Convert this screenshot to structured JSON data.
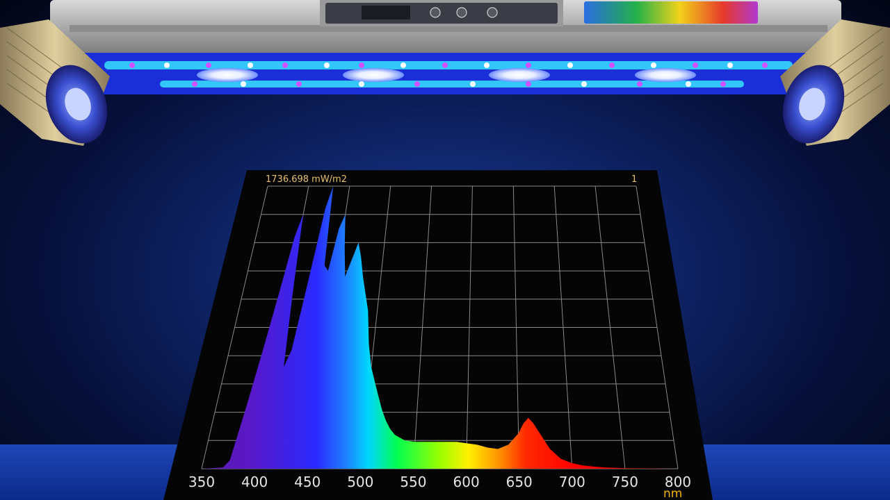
{
  "colors": {
    "panel_bg": "#050505",
    "grid": "#8a8a8a",
    "accent": "#f0b400",
    "readout": "#e8c070",
    "tick_text": "#e6e6e6",
    "led_blue": "#3a7bff",
    "led_violet": "#c040ff",
    "led_white": "#f4f8ff"
  },
  "lamp": {
    "icon": "led-fixture-icon",
    "left_spot_icon": "spotlight-icon",
    "right_spot_icon": "spotlight-icon"
  },
  "chart_data": {
    "type": "area",
    "readout": "1736.698 mW/m2",
    "channel": "1",
    "xlabel": "nm",
    "ylabel": "",
    "xlim": [
      350,
      800
    ],
    "ylim": [
      0,
      100
    ],
    "xticks": [
      350,
      400,
      450,
      500,
      550,
      600,
      650,
      700,
      750,
      800
    ],
    "grid": true,
    "fill": "wavelength-spectrum-gradient",
    "series": [
      {
        "x": [
          350,
          370,
          375,
          380,
          385,
          390,
          395,
          400,
          405,
          410,
          415,
          420,
          425,
          430,
          435,
          440,
          445,
          450,
          455,
          460,
          465,
          470,
          475,
          480,
          485,
          490,
          495,
          500,
          505,
          510,
          515,
          520,
          525,
          530,
          540,
          550,
          560,
          570,
          580,
          590,
          600,
          610,
          620,
          630,
          640,
          650,
          655,
          660,
          665,
          670,
          675,
          680,
          690,
          700,
          710,
          720,
          730,
          750,
          800
        ],
        "values": [
          0,
          0.5,
          3,
          22,
          42,
          62,
          82,
          90,
          62,
          36,
          42,
          68,
          92,
          100,
          72,
          70,
          85,
          90,
          78,
          68,
          74,
          80,
          75,
          68,
          62,
          56,
          44,
          36,
          31,
          26,
          21,
          17,
          14,
          12,
          10,
          9.5,
          9.5,
          9.5,
          9.5,
          9.5,
          9,
          8.5,
          7.5,
          7,
          8.5,
          12.5,
          16,
          18,
          16,
          13,
          10,
          7,
          3.5,
          2,
          1.2,
          0.8,
          0.5,
          0.2,
          0
        ]
      }
    ]
  }
}
